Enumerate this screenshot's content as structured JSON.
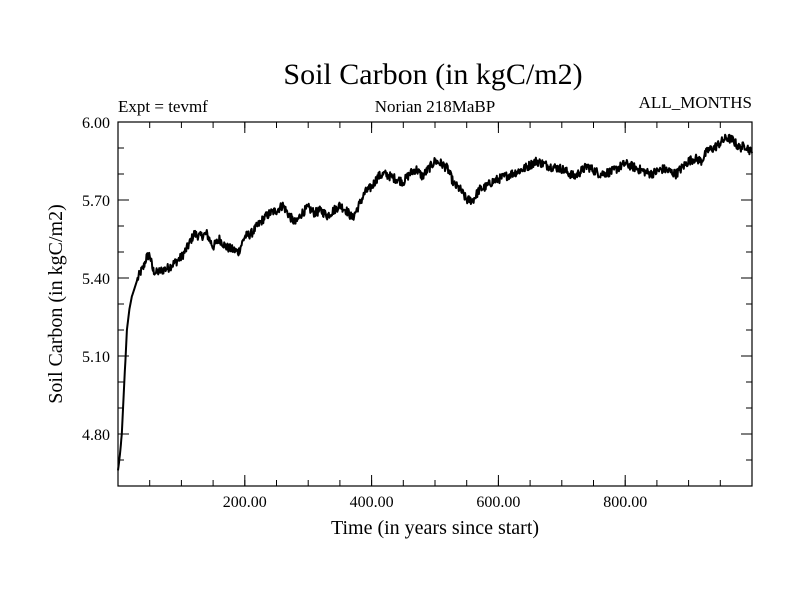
{
  "chart_data": {
    "type": "line",
    "title": "Soil Carbon (in kgC/m2)",
    "subtitle_left": "Expt = tevmf",
    "subtitle_center": "Norian 218MaBP",
    "subtitle_right": "ALL_MONTHS",
    "xlabel": "Time (in years since start)",
    "ylabel": "Soil Carbon (in kgC/m2)",
    "xlim": [
      0,
      1000
    ],
    "ylim": [
      4.6,
      6.0
    ],
    "xticks": [
      200,
      400,
      600,
      800
    ],
    "xtick_labels": [
      "200.00",
      "400.00",
      "600.00",
      "800.00"
    ],
    "yticks": [
      4.8,
      5.1,
      5.4,
      5.7,
      6.0
    ],
    "ytick_labels": [
      "4.80",
      "5.10",
      "5.40",
      "5.70",
      "6.00"
    ],
    "series": [
      {
        "name": "Soil Carbon",
        "x": [
          0,
          3,
          6,
          10,
          14,
          18,
          22,
          26,
          30,
          35,
          40,
          45,
          50,
          55,
          60,
          70,
          80,
          90,
          100,
          110,
          120,
          130,
          140,
          150,
          160,
          170,
          180,
          190,
          200,
          210,
          220,
          230,
          240,
          250,
          260,
          270,
          280,
          290,
          300,
          310,
          320,
          330,
          340,
          350,
          360,
          370,
          380,
          390,
          400,
          410,
          420,
          430,
          440,
          450,
          460,
          470,
          480,
          490,
          500,
          510,
          520,
          530,
          540,
          550,
          560,
          570,
          580,
          590,
          600,
          620,
          640,
          660,
          680,
          700,
          720,
          740,
          760,
          780,
          800,
          820,
          840,
          860,
          880,
          900,
          910,
          920,
          930,
          940,
          950,
          960,
          970,
          980,
          990,
          1000
        ],
        "values": [
          4.66,
          4.72,
          4.8,
          5.0,
          5.2,
          5.28,
          5.33,
          5.36,
          5.39,
          5.42,
          5.44,
          5.48,
          5.49,
          5.43,
          5.42,
          5.43,
          5.44,
          5.46,
          5.48,
          5.52,
          5.57,
          5.56,
          5.57,
          5.52,
          5.55,
          5.52,
          5.51,
          5.5,
          5.56,
          5.57,
          5.6,
          5.63,
          5.65,
          5.66,
          5.68,
          5.64,
          5.61,
          5.65,
          5.67,
          5.65,
          5.66,
          5.64,
          5.66,
          5.68,
          5.66,
          5.63,
          5.68,
          5.73,
          5.75,
          5.79,
          5.8,
          5.79,
          5.78,
          5.77,
          5.8,
          5.82,
          5.79,
          5.82,
          5.85,
          5.84,
          5.82,
          5.76,
          5.74,
          5.7,
          5.7,
          5.74,
          5.75,
          5.77,
          5.78,
          5.8,
          5.82,
          5.85,
          5.83,
          5.82,
          5.79,
          5.83,
          5.8,
          5.81,
          5.84,
          5.82,
          5.8,
          5.82,
          5.8,
          5.85,
          5.86,
          5.85,
          5.89,
          5.9,
          5.92,
          5.94,
          5.93,
          5.9,
          5.91,
          5.88
        ]
      }
    ]
  }
}
